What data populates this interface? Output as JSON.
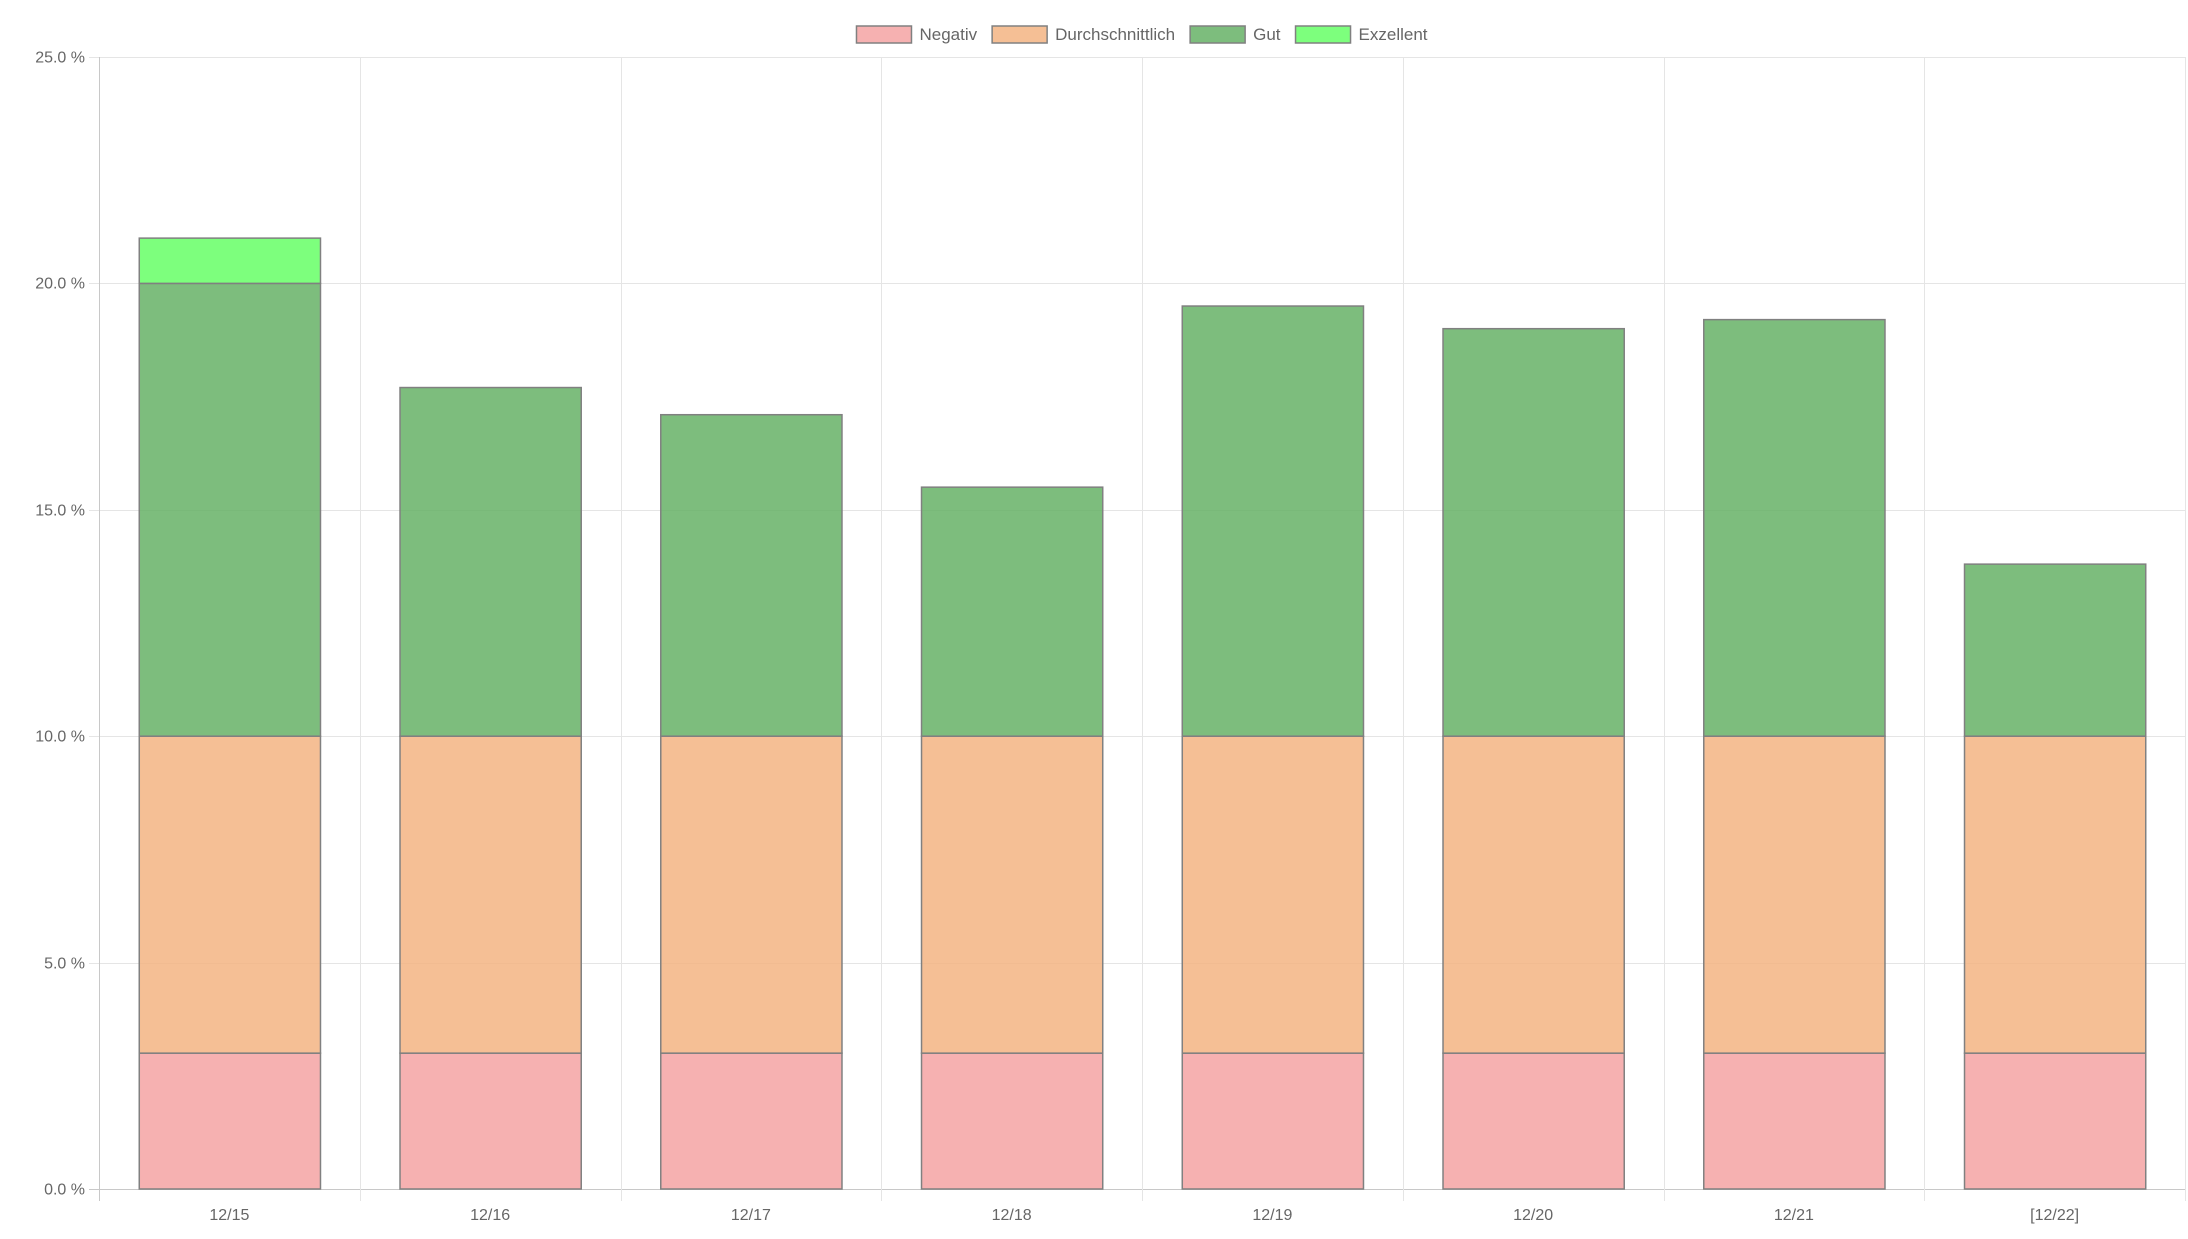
{
  "chart_data": {
    "type": "bar",
    "stacked": true,
    "categories": [
      "12/15",
      "12/16",
      "12/17",
      "12/18",
      "12/19",
      "12/20",
      "12/21",
      "[12/22]"
    ],
    "series": [
      {
        "name": "Negativ",
        "color": "#f4a3a3",
        "values": [
          3,
          3,
          3,
          3,
          3,
          3,
          3,
          3
        ]
      },
      {
        "name": "Durchschnittlich",
        "color": "#f3b482",
        "values": [
          7,
          7,
          7,
          7,
          7,
          7,
          7,
          7
        ]
      },
      {
        "name": "Gut",
        "color": "#66b266",
        "values": [
          10,
          7.7,
          7.1,
          5.5,
          9.5,
          9.0,
          9.2,
          3.8
        ]
      },
      {
        "name": "Exzellent",
        "color": "#66ff66",
        "values": [
          1,
          0,
          0,
          0,
          0,
          0,
          0,
          0
        ]
      }
    ],
    "ylim": [
      0,
      25
    ],
    "yticks": [
      0,
      5,
      10,
      15,
      20,
      25
    ],
    "ytick_labels": [
      "0.0 %",
      "5.0 %",
      "10.0 %",
      "15.0 %",
      "20.0 %",
      "25.0 %"
    ],
    "grid": true,
    "legend_position": "top-center",
    "bar_border_color": "#808080",
    "grid_color": "#e5e5e5",
    "axis_color": "#c8c8c8"
  }
}
